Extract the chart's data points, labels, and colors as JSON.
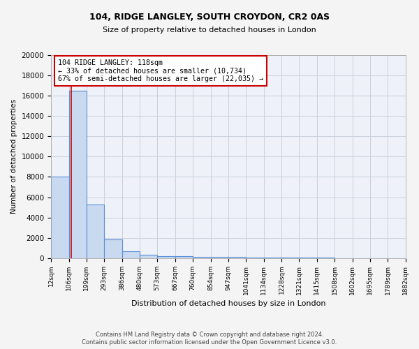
{
  "title1": "104, RIDGE LANGLEY, SOUTH CROYDON, CR2 0AS",
  "title2": "Size of property relative to detached houses in London",
  "xlabel": "Distribution of detached houses by size in London",
  "ylabel": "Number of detached properties",
  "bin_edges": [
    12,
    106,
    199,
    293,
    386,
    480,
    573,
    667,
    760,
    854,
    947,
    1041,
    1134,
    1228,
    1321,
    1415,
    1508,
    1602,
    1695,
    1789,
    1882
  ],
  "bar_heights": [
    8000,
    16500,
    5300,
    1850,
    700,
    300,
    225,
    175,
    150,
    150,
    100,
    80,
    60,
    50,
    40,
    30,
    20,
    15,
    10,
    8
  ],
  "bar_color": "#c9d9f0",
  "bar_edge_color": "#5b8fd6",
  "bar_edge_width": 0.8,
  "grid_color": "#c8d0dc",
  "bg_color": "#eef2f8",
  "fig_color": "#f4f4f4",
  "vline_x": 118,
  "vline_color": "#cc0000",
  "annotation_text": "104 RIDGE LANGLEY: 118sqm\n← 33% of detached houses are smaller (10,734)\n67% of semi-detached houses are larger (22,035) →",
  "annotation_box_color": "#ffffff",
  "annotation_box_edge_color": "#cc0000",
  "ylim": [
    0,
    20000
  ],
  "yticks": [
    0,
    2000,
    4000,
    6000,
    8000,
    10000,
    12000,
    14000,
    16000,
    18000,
    20000
  ],
  "footer1": "Contains HM Land Registry data © Crown copyright and database right 2024.",
  "footer2": "Contains public sector information licensed under the Open Government Licence v3.0."
}
